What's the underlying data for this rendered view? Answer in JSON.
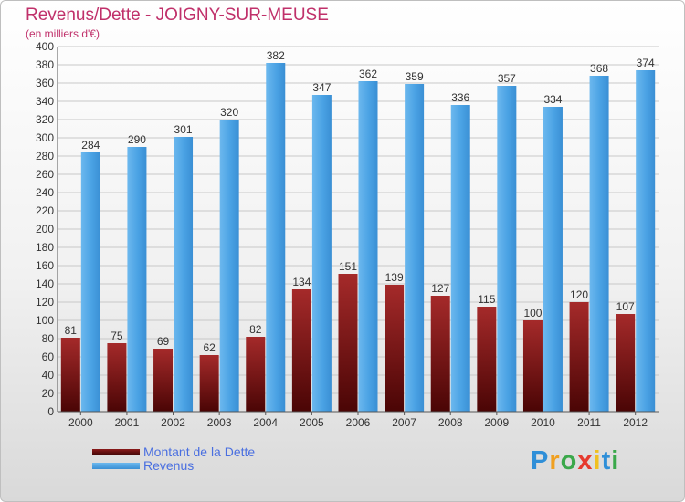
{
  "header": {
    "title": "Revenus/Dette - JOIGNY-SUR-MEUSE",
    "subtitle": "(en milliers d'€)"
  },
  "chart_data": {
    "type": "bar",
    "title": "Revenus/Dette - JOIGNY-SUR-MEUSE",
    "subtitle": "(en milliers d'€)",
    "categories": [
      "2000",
      "2001",
      "2002",
      "2003",
      "2004",
      "2005",
      "2006",
      "2007",
      "2008",
      "2009",
      "2010",
      "2011",
      "2012"
    ],
    "series": [
      {
        "name": "Montant de la Dette",
        "values": [
          81,
          75,
          69,
          62,
          82,
          134,
          151,
          139,
          127,
          115,
          100,
          120,
          107
        ],
        "color": "#8b1a1a"
      },
      {
        "name": "Revenus",
        "values": [
          284,
          290,
          301,
          320,
          382,
          347,
          362,
          359,
          336,
          357,
          334,
          368,
          374
        ],
        "color": "#4da6e8"
      }
    ],
    "ylim": [
      0,
      400
    ],
    "ytick_step": 20,
    "grid": true,
    "legend_position": "bottom-left"
  },
  "legend": {
    "items": [
      {
        "label": "Montant de la Dette",
        "color": "#6b0f0f"
      },
      {
        "label": "Revenus",
        "color": "#4da6e8"
      }
    ]
  },
  "brand": {
    "letters": [
      "P",
      "r",
      "o",
      "x",
      "i",
      "t",
      "i"
    ],
    "colors": [
      "#2f8fd8",
      "#f0a020",
      "#3aa84a",
      "#e63a2e",
      "#f0c020",
      "#2f8fd8",
      "#3aa84a"
    ]
  }
}
